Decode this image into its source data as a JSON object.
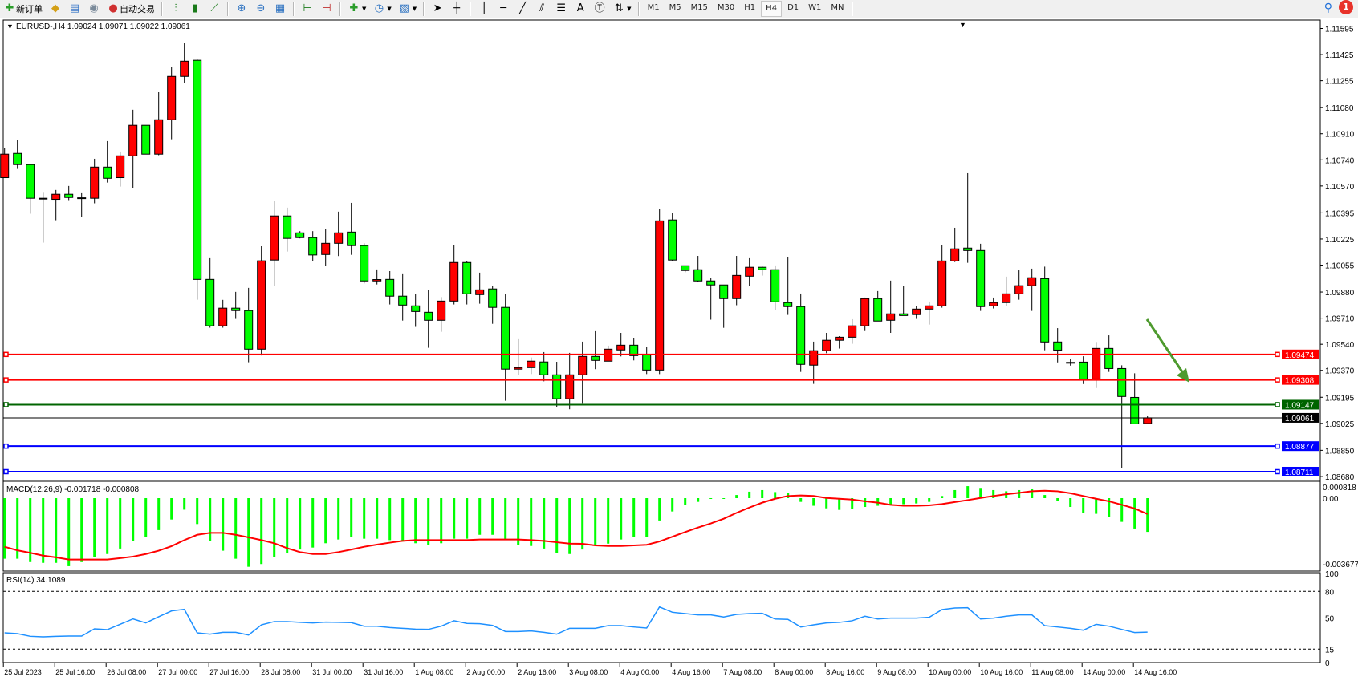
{
  "toolbar": {
    "new_order": "新订单",
    "auto_trading": "自动交易",
    "timeframes": [
      "M1",
      "M5",
      "M15",
      "M30",
      "H1",
      "H4",
      "D1",
      "W1",
      "MN"
    ],
    "active_timeframe": "H4",
    "notification_count": "1"
  },
  "chart": {
    "title": "EURUSD-,H4  1.09024 1.09071 1.09022 1.09061",
    "bull_color": "#ff0000",
    "bear_color": "#00ff00",
    "price_axis": [
      "1.11595",
      "1.11425",
      "1.11255",
      "1.11080",
      "1.10910",
      "1.10740",
      "1.10570",
      "1.10395",
      "1.10225",
      "1.10055",
      "1.09880",
      "1.09710",
      "1.09540",
      "1.09370",
      "1.09195",
      "1.09025",
      "1.08850",
      "1.08680"
    ],
    "current_price": "1.09061",
    "levels": [
      {
        "price": "1.09474",
        "color": "#ff0000"
      },
      {
        "price": "1.09308",
        "color": "#ff0000"
      },
      {
        "price": "1.09147",
        "color": "#006400"
      },
      {
        "price": "1.08877",
        "color": "#0000ff"
      },
      {
        "price": "1.08711",
        "color": "#0000ff"
      }
    ],
    "arrow_color": "#4e9a2e",
    "time_axis": [
      "25 Jul 2023",
      "25 Jul 16:00",
      "26 Jul 08:00",
      "27 Jul 00:00",
      "27 Jul 16:00",
      "28 Jul 08:00",
      "31 Jul 00:00",
      "31 Jul 16:00",
      "1 Aug 08:00",
      "2 Aug 00:00",
      "2 Aug 16:00",
      "3 Aug 08:00",
      "4 Aug 00:00",
      "4 Aug 16:00",
      "7 Aug 08:00",
      "8 Aug 00:00",
      "8 Aug 16:00",
      "9 Aug 08:00",
      "10 Aug 00:00",
      "10 Aug 16:00",
      "11 Aug 08:00",
      "14 Aug 00:00",
      "14 Aug 16:00"
    ],
    "candles_ohlc": [
      [
        1.10624,
        1.10815,
        1.10624,
        1.10777
      ],
      [
        1.10782,
        1.10867,
        1.10681,
        1.10709
      ],
      [
        1.10709,
        1.10709,
        1.10389,
        1.1049
      ],
      [
        1.1049,
        1.10531,
        1.10201,
        1.10486
      ],
      [
        1.10483,
        1.10544,
        1.10347,
        1.10516
      ],
      [
        1.10516,
        1.1057,
        1.10478,
        1.10495
      ],
      [
        1.10493,
        1.10528,
        1.10368,
        1.10491
      ],
      [
        1.1049,
        1.10747,
        1.10457,
        1.10693
      ],
      [
        1.10693,
        1.10862,
        1.10592,
        1.1062
      ],
      [
        1.10624,
        1.10794,
        1.10566,
        1.10766
      ],
      [
        1.10766,
        1.11066,
        1.10556,
        1.10965
      ],
      [
        1.10965,
        1.10965,
        1.10777,
        1.10777
      ],
      [
        1.10777,
        1.1118,
        1.1077,
        1.11001
      ],
      [
        1.11001,
        1.11342,
        1.10874,
        1.11283
      ],
      [
        1.11283,
        1.11499,
        1.1124,
        1.11382
      ],
      [
        1.11388,
        1.11395,
        1.0983,
        1.09962
      ],
      [
        1.09962,
        1.101,
        1.09648,
        1.0966
      ],
      [
        1.0966,
        1.09829,
        1.09648,
        1.09775
      ],
      [
        1.09775,
        1.09881,
        1.09705,
        1.09759
      ],
      [
        1.09759,
        1.09907,
        1.09423,
        1.09508
      ],
      [
        1.09508,
        1.10178,
        1.09467,
        1.10083
      ],
      [
        1.10088,
        1.10471,
        1.09919,
        1.10375
      ],
      [
        1.10375,
        1.10429,
        1.10143,
        1.10229
      ],
      [
        1.10265,
        1.10276,
        1.10229,
        1.10234
      ],
      [
        1.10234,
        1.10276,
        1.10081,
        1.10121
      ],
      [
        1.10124,
        1.10288,
        1.10049,
        1.10197
      ],
      [
        1.10197,
        1.10403,
        1.10114,
        1.10265
      ],
      [
        1.1027,
        1.1046,
        1.10122,
        1.10182
      ],
      [
        1.10182,
        1.10197,
        1.09936,
        1.09952
      ],
      [
        1.09952,
        1.10027,
        1.09929,
        1.09961
      ],
      [
        1.09962,
        1.10016,
        1.09799,
        1.09853
      ],
      [
        1.09853,
        1.10001,
        1.09694,
        1.09795
      ],
      [
        1.0979,
        1.09865,
        1.09653,
        1.09753
      ],
      [
        1.09748,
        1.09891,
        1.09517,
        1.09696
      ],
      [
        1.09696,
        1.09847,
        1.09621,
        1.09821
      ],
      [
        1.09821,
        1.10188,
        1.09799,
        1.10072
      ],
      [
        1.10072,
        1.10079,
        1.09799,
        1.09868
      ],
      [
        1.09863,
        1.10006,
        1.09804,
        1.09894
      ],
      [
        1.099,
        1.09922,
        1.09673,
        1.0978
      ],
      [
        1.0978,
        1.0987,
        1.09172,
        1.09378
      ],
      [
        1.09378,
        1.09573,
        1.09341,
        1.09388
      ],
      [
        1.09388,
        1.09454,
        1.09346,
        1.0943
      ],
      [
        1.09425,
        1.09489,
        1.09299,
        1.09341
      ],
      [
        1.09341,
        1.09426,
        1.09132,
        1.09185
      ],
      [
        1.09185,
        1.09484,
        1.09117,
        1.09341
      ],
      [
        1.09341,
        1.09557,
        1.09153,
        1.09461
      ],
      [
        1.09461,
        1.09625,
        1.09378,
        1.09435
      ],
      [
        1.0943,
        1.09531,
        1.0943,
        1.09508
      ],
      [
        1.09503,
        1.09614,
        1.09461,
        1.09534
      ],
      [
        1.09534,
        1.09578,
        1.09435,
        1.09466
      ],
      [
        1.09472,
        1.0952,
        1.09346,
        1.09372
      ],
      [
        1.09372,
        1.10418,
        1.09346,
        1.10343
      ],
      [
        1.10349,
        1.10392,
        1.10082,
        1.10088
      ],
      [
        1.10051,
        1.10051,
        1.10009,
        1.1002
      ],
      [
        1.10025,
        1.10115,
        1.09945,
        1.09952
      ],
      [
        1.09952,
        1.09973,
        1.097,
        1.09926
      ],
      [
        1.09926,
        1.09926,
        1.09647,
        1.09837
      ],
      [
        1.09837,
        1.10115,
        1.09794,
        1.09988
      ],
      [
        1.09983,
        1.101,
        1.09919,
        1.10041
      ],
      [
        1.10041,
        1.10046,
        1.09987,
        1.10025
      ],
      [
        1.10025,
        1.10053,
        1.09762,
        1.09816
      ],
      [
        1.09811,
        1.1011,
        1.09731,
        1.09785
      ],
      [
        1.09785,
        1.0987,
        1.0936,
        1.09409
      ],
      [
        1.09404,
        1.09557,
        1.09282,
        1.09498
      ],
      [
        1.09498,
        1.09614,
        1.09482,
        1.09566
      ],
      [
        1.09566,
        1.09593,
        1.09512,
        1.09586
      ],
      [
        1.09586,
        1.09703,
        1.09543,
        1.0966
      ],
      [
        1.0966,
        1.09844,
        1.09626,
        1.09837
      ],
      [
        1.09837,
        1.09886,
        1.09691,
        1.09691
      ],
      [
        1.09696,
        1.09954,
        1.09614,
        1.09738
      ],
      [
        1.09738,
        1.09917,
        1.09727,
        1.09727
      ],
      [
        1.09733,
        1.09787,
        1.09705,
        1.09769
      ],
      [
        1.09769,
        1.09818,
        1.09668,
        1.0979
      ],
      [
        1.0979,
        1.10183,
        1.09778,
        1.10082
      ],
      [
        1.10082,
        1.10298,
        1.10075,
        1.10161
      ],
      [
        1.10166,
        1.10653,
        1.1007,
        1.1015
      ],
      [
        1.1015,
        1.10194,
        1.09757,
        1.09785
      ],
      [
        1.0979,
        1.09844,
        1.09773,
        1.09811
      ],
      [
        1.09811,
        1.0998,
        1.09788,
        1.09868
      ],
      [
        1.09868,
        1.10021,
        1.0983,
        1.09921
      ],
      [
        1.09921,
        1.10032,
        1.09757,
        1.09973
      ],
      [
        1.09967,
        1.10045,
        1.09501,
        1.09555
      ],
      [
        1.09555,
        1.09645,
        1.09422,
        1.09502
      ],
      [
        1.09422,
        1.09445,
        1.09401,
        1.0942
      ],
      [
        1.09424,
        1.09462,
        1.09281,
        1.09314
      ],
      [
        1.09314,
        1.09555,
        1.09255,
        1.09513
      ],
      [
        1.09513,
        1.09598,
        1.0936,
        1.09382
      ],
      [
        1.09382,
        1.09403,
        1.08733,
        1.092
      ],
      [
        1.09194,
        1.09351,
        1.09022,
        1.09022
      ],
      [
        1.09024,
        1.09071,
        1.09022,
        1.09061
      ]
    ]
  },
  "macd": {
    "label": "MACD(12,26,9) -0.001718 -0.000808",
    "axis": [
      "0.000818",
      "0.00",
      "-0.003677"
    ],
    "histogram_color": "#00ff00",
    "signal_color": "#ff0000",
    "histogram": [
      -0.00309,
      -0.00309,
      -0.00326,
      -0.0033,
      -0.0033,
      -0.00347,
      -0.00326,
      -0.00302,
      -0.00285,
      -0.00257,
      -0.00217,
      -0.002,
      -0.00163,
      -0.00109,
      -0.00059,
      -0.00132,
      -0.00217,
      -0.00268,
      -0.00309,
      -0.0035,
      -0.00336,
      -0.00302,
      -0.00282,
      -0.00262,
      -0.00252,
      -0.0023,
      -0.00211,
      -0.002,
      -0.00207,
      -0.00207,
      -0.00214,
      -0.00221,
      -0.0023,
      -0.00241,
      -0.0023,
      -0.00207,
      -0.00207,
      -0.00187,
      -0.00187,
      -0.00211,
      -0.00238,
      -0.00244,
      -0.00257,
      -0.00279,
      -0.00285,
      -0.00262,
      -0.00241,
      -0.00232,
      -0.00211,
      -0.002,
      -0.002,
      -0.00114,
      -0.00068,
      -0.00035,
      -0.00019,
      -3e-05,
      -1e-05,
      0.00016,
      0.00033,
      0.00041,
      0.00031,
      0.00025,
      -0.00019,
      -0.00039,
      -0.00052,
      -0.0006,
      -0.00056,
      -0.00045,
      -0.00039,
      -0.00034,
      -0.00031,
      -0.00027,
      -0.00019,
      0.00011,
      0.00041,
      0.00061,
      0.00048,
      0.00041,
      0.00035,
      0.00041,
      0.00045,
      0.00016,
      -0.00015,
      -0.00045,
      -0.00074,
      -0.0008,
      -0.00097,
      -0.00121,
      -0.00155,
      -0.00172
    ],
    "signal": [
      -0.00248,
      -0.00266,
      -0.00279,
      -0.00293,
      -0.00302,
      -0.00313,
      -0.00313,
      -0.00313,
      -0.00313,
      -0.00306,
      -0.00298,
      -0.00285,
      -0.00268,
      -0.00245,
      -0.00214,
      -0.00187,
      -0.00177,
      -0.00177,
      -0.00187,
      -0.002,
      -0.00214,
      -0.0023,
      -0.00255,
      -0.00275,
      -0.00285,
      -0.00285,
      -0.00275,
      -0.00262,
      -0.00248,
      -0.00237,
      -0.00227,
      -0.00218,
      -0.00214,
      -0.00214,
      -0.00214,
      -0.00214,
      -0.00214,
      -0.00211,
      -0.00211,
      -0.00211,
      -0.00211,
      -0.00214,
      -0.00218,
      -0.00225,
      -0.00232,
      -0.00233,
      -0.00241,
      -0.00244,
      -0.00244,
      -0.00241,
      -0.00238,
      -0.00221,
      -0.00197,
      -0.00173,
      -0.0015,
      -0.00129,
      -0.00105,
      -0.00075,
      -0.00048,
      -0.00023,
      -3e-05,
      0.00011,
      0.00014,
      0.00011,
      1e-05,
      -3e-05,
      -7e-05,
      -0.00016,
      -0.00023,
      -0.00034,
      -0.00039,
      -0.00039,
      -0.00037,
      -0.0003,
      -0.0002,
      -0.0001,
      1e-05,
      0.00011,
      0.0002,
      0.00027,
      0.00035,
      0.00038,
      0.00035,
      0.00025,
      0.00011,
      -3e-05,
      -0.00016,
      -0.00034,
      -0.00053,
      -0.00081
    ]
  },
  "rsi": {
    "label": "RSI(14) 34.1089",
    "axis": [
      "100",
      "80",
      "50",
      "15",
      "0"
    ],
    "levels": [
      80,
      50,
      15
    ],
    "color": "#1e90ff",
    "values": [
      33.3,
      32.4,
      29.4,
      28.8,
      29.4,
      29.7,
      29.7,
      37.8,
      36.9,
      43.0,
      49.0,
      44.5,
      51.4,
      58.0,
      59.8,
      33.3,
      31.8,
      33.9,
      33.9,
      30.9,
      42.3,
      46.0,
      46.0,
      45.1,
      44.5,
      45.4,
      45.1,
      44.8,
      40.8,
      40.8,
      39.3,
      38.4,
      37.5,
      37.2,
      40.8,
      46.9,
      43.9,
      43.6,
      41.7,
      34.8,
      34.8,
      35.4,
      33.9,
      31.8,
      38.4,
      38.4,
      38.4,
      41.4,
      41.4,
      39.9,
      38.7,
      62.5,
      56.5,
      55.0,
      53.5,
      53.5,
      51.1,
      54.1,
      55.0,
      55.3,
      48.9,
      48.4,
      39.9,
      42.3,
      44.5,
      45.1,
      46.9,
      52.0,
      48.9,
      49.9,
      49.9,
      49.9,
      50.8,
      59.5,
      61.3,
      61.6,
      48.9,
      49.9,
      52.0,
      53.5,
      53.5,
      41.4,
      39.9,
      38.4,
      36.3,
      42.9,
      40.8,
      37.2,
      33.6,
      34.1
    ]
  }
}
